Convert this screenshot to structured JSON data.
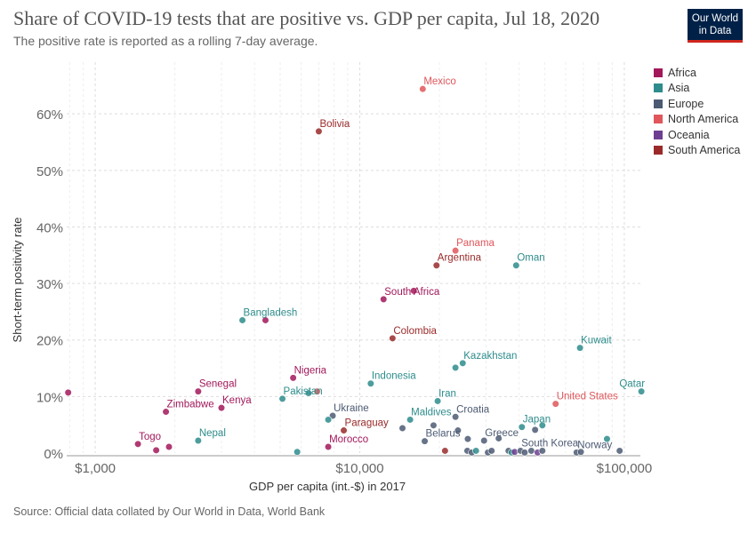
{
  "header": {
    "title": "Share of COVID-19 tests that are positive vs. GDP per capita, Jul 18, 2020",
    "subtitle": "The positive rate is reported as a rolling 7-day average."
  },
  "logo": {
    "line1": "Our World",
    "line2": "in Data"
  },
  "footer": {
    "source": "Source: Official data collated by Our World in Data, World Bank"
  },
  "colors": {
    "Africa": "#a2185b",
    "Asia": "#2e8c8c",
    "Europe": "#4c5a73",
    "North America": "#e0565b",
    "Oceania": "#6d3e91",
    "South America": "#9a2a2a"
  },
  "legend": [
    "Africa",
    "Asia",
    "Europe",
    "North America",
    "Oceania",
    "South America"
  ],
  "chart_data": {
    "type": "scatter",
    "title": "Share of COVID-19 tests that are positive vs. GDP per capita, Jul 18, 2020",
    "xlabel": "GDP per capita (int.-$) in 2017",
    "ylabel": "Short-term positivity rate",
    "xscale": "log",
    "xlim": [
      780,
      115000
    ],
    "ylim": [
      0,
      66
    ],
    "xticks": [
      {
        "value": 1000,
        "label": "$1,000"
      },
      {
        "value": 10000,
        "label": "$10,000"
      },
      {
        "value": 100000,
        "label": "$100,000"
      }
    ],
    "yticks": [
      {
        "value": 0,
        "label": "0%"
      },
      {
        "value": 10,
        "label": "10%"
      },
      {
        "value": 20,
        "label": "20%"
      },
      {
        "value": 30,
        "label": "30%"
      },
      {
        "value": 40,
        "label": "40%"
      },
      {
        "value": 50,
        "label": "50%"
      },
      {
        "value": 60,
        "label": "60%"
      }
    ],
    "grid": true,
    "legend_position": "right",
    "points": [
      {
        "x": 17300,
        "y": 64.4,
        "continent": "North America",
        "label": "Mexico"
      },
      {
        "x": 7000,
        "y": 56.9,
        "continent": "South America",
        "label": "Bolivia"
      },
      {
        "x": 23000,
        "y": 35.8,
        "continent": "North America",
        "label": "Panama"
      },
      {
        "x": 19500,
        "y": 33.2,
        "continent": "South America",
        "label": "Argentina"
      },
      {
        "x": 39000,
        "y": 33.2,
        "continent": "Asia",
        "label": "Oman"
      },
      {
        "x": 12300,
        "y": 27.2,
        "continent": "Africa",
        "label": "South Africa"
      },
      {
        "x": 16000,
        "y": 28.7,
        "continent": "Africa"
      },
      {
        "x": 3600,
        "y": 23.5,
        "continent": "Asia",
        "label": "Bangladesh"
      },
      {
        "x": 4400,
        "y": 23.5,
        "continent": "Africa"
      },
      {
        "x": 13300,
        "y": 20.3,
        "continent": "South America",
        "label": "Colombia"
      },
      {
        "x": 68000,
        "y": 18.6,
        "continent": "Asia",
        "label": "Kuwait"
      },
      {
        "x": 24500,
        "y": 15.9,
        "continent": "Asia",
        "label": "Kazakhstan"
      },
      {
        "x": 23000,
        "y": 15.1,
        "continent": "Asia"
      },
      {
        "x": 5600,
        "y": 13.3,
        "continent": "Africa",
        "label": "Nigeria"
      },
      {
        "x": 11000,
        "y": 12.3,
        "continent": "Asia",
        "label": "Indonesia"
      },
      {
        "x": 790,
        "y": 10.7,
        "continent": "Africa"
      },
      {
        "x": 2450,
        "y": 10.9,
        "continent": "Africa",
        "label": "Senegal"
      },
      {
        "x": 6400,
        "y": 10.6,
        "continent": "Asia"
      },
      {
        "x": 6900,
        "y": 10.9,
        "continent": "North America"
      },
      {
        "x": 116000,
        "y": 10.9,
        "continent": "Asia",
        "label": "Qatar"
      },
      {
        "x": 5100,
        "y": 9.6,
        "continent": "Asia",
        "label": "Pakistan"
      },
      {
        "x": 19700,
        "y": 9.2,
        "continent": "Asia",
        "label": "Iran"
      },
      {
        "x": 55000,
        "y": 8.7,
        "continent": "North America",
        "label": "United States"
      },
      {
        "x": 3000,
        "y": 8.0,
        "continent": "Africa",
        "label": "Kenya"
      },
      {
        "x": 1850,
        "y": 7.3,
        "continent": "Africa",
        "label": "Zimbabwe"
      },
      {
        "x": 7900,
        "y": 6.6,
        "continent": "Europe",
        "label": "Ukraine"
      },
      {
        "x": 7600,
        "y": 5.9,
        "continent": "Asia"
      },
      {
        "x": 15500,
        "y": 5.9,
        "continent": "Asia",
        "label": "Maldives"
      },
      {
        "x": 23000,
        "y": 6.4,
        "continent": "Europe",
        "label": "Croatia"
      },
      {
        "x": 19000,
        "y": 4.9,
        "continent": "Europe"
      },
      {
        "x": 41000,
        "y": 4.6,
        "continent": "Asia",
        "label": "Japan"
      },
      {
        "x": 49000,
        "y": 4.9,
        "continent": "Asia"
      },
      {
        "x": 46000,
        "y": 4.1,
        "continent": "Europe"
      },
      {
        "x": 8700,
        "y": 4.0,
        "continent": "South America",
        "label": "Paraguay"
      },
      {
        "x": 14500,
        "y": 4.4,
        "continent": "Europe"
      },
      {
        "x": 23500,
        "y": 4.0,
        "continent": "Europe"
      },
      {
        "x": 2450,
        "y": 2.2,
        "continent": "Asia",
        "label": "Nepal"
      },
      {
        "x": 1450,
        "y": 1.6,
        "continent": "Africa",
        "label": "Togo"
      },
      {
        "x": 1900,
        "y": 1.1,
        "continent": "Africa"
      },
      {
        "x": 1700,
        "y": 0.5,
        "continent": "Africa"
      },
      {
        "x": 5800,
        "y": 0.2,
        "continent": "Asia"
      },
      {
        "x": 7600,
        "y": 1.1,
        "continent": "Africa",
        "label": "Morocco"
      },
      {
        "x": 17600,
        "y": 2.1,
        "continent": "Europe",
        "label": "Belarus"
      },
      {
        "x": 25600,
        "y": 2.5,
        "continent": "Europe"
      },
      {
        "x": 29500,
        "y": 2.2,
        "continent": "Europe",
        "label": "Greece"
      },
      {
        "x": 33500,
        "y": 2.6,
        "continent": "Europe"
      },
      {
        "x": 21000,
        "y": 0.4,
        "continent": "South America"
      },
      {
        "x": 25500,
        "y": 0.4,
        "continent": "Europe"
      },
      {
        "x": 26500,
        "y": 0.1,
        "continent": "Europe"
      },
      {
        "x": 27500,
        "y": 0.4,
        "continent": "Asia"
      },
      {
        "x": 30500,
        "y": 0.1,
        "continent": "Europe"
      },
      {
        "x": 31500,
        "y": 0.4,
        "continent": "Europe"
      },
      {
        "x": 36500,
        "y": 0.4,
        "continent": "Europe"
      },
      {
        "x": 37500,
        "y": 0.1,
        "continent": "Asia"
      },
      {
        "x": 38500,
        "y": 0.2,
        "continent": "Oceania"
      },
      {
        "x": 40500,
        "y": 0.4,
        "continent": "Europe",
        "label": "South Korea"
      },
      {
        "x": 42000,
        "y": 0.1,
        "continent": "Europe"
      },
      {
        "x": 44500,
        "y": 0.4,
        "continent": "Europe"
      },
      {
        "x": 47000,
        "y": 0.1,
        "continent": "Oceania"
      },
      {
        "x": 49000,
        "y": 0.4,
        "continent": "Europe"
      },
      {
        "x": 66000,
        "y": 0.1,
        "continent": "Europe",
        "label": "Norway"
      },
      {
        "x": 68500,
        "y": 0.2,
        "continent": "Europe"
      },
      {
        "x": 86000,
        "y": 2.5,
        "continent": "Asia"
      },
      {
        "x": 96000,
        "y": 0.4,
        "continent": "Europe"
      }
    ]
  }
}
